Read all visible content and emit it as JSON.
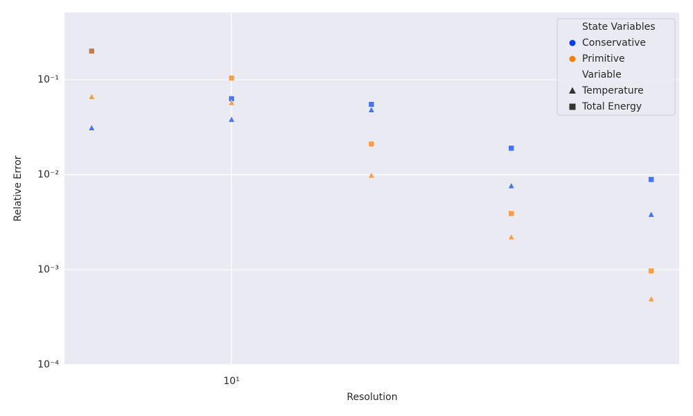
{
  "chart_data": {
    "type": "scatter",
    "x_label": "Resolution",
    "y_label": "Relative Error",
    "x": [
      5,
      10,
      20,
      40,
      80
    ],
    "xlog": true,
    "ylog": true,
    "xlim": [
      4.37,
      91.9
    ],
    "ylim": [
      0.0001,
      0.51
    ],
    "xticks": [
      {
        "value": 10,
        "label": "10¹"
      }
    ],
    "yticks": [
      {
        "value": 0.0001,
        "label": "10⁻⁴"
      },
      {
        "value": 0.001,
        "label": "10⁻³"
      },
      {
        "value": 0.01,
        "label": "10⁻²"
      },
      {
        "value": 0.1,
        "label": "10⁻¹"
      }
    ],
    "grid": true,
    "legend": "upper right",
    "hue": {
      "title": "State Variables",
      "levels": [
        {
          "name": "Conservative",
          "color": "#023eff"
        },
        {
          "name": "Primitive",
          "color": "#ff7c00"
        }
      ]
    },
    "style": {
      "title": "Variable",
      "levels": [
        {
          "name": "Temperature",
          "marker": "triangle"
        },
        {
          "name": "Total Energy",
          "marker": "square"
        }
      ]
    },
    "series": [
      {
        "hue": 0,
        "style": 0,
        "values": [
          0.031,
          0.038,
          0.048,
          0.0076,
          0.0038
        ]
      },
      {
        "hue": 0,
        "style": 1,
        "values": [
          0.2,
          0.063,
          0.055,
          0.019,
          0.0089
        ]
      },
      {
        "hue": 1,
        "style": 0,
        "values": [
          0.066,
          0.057,
          0.0098,
          0.0022,
          0.00049
        ]
      },
      {
        "hue": 1,
        "style": 1,
        "values": [
          0.2,
          0.104,
          0.021,
          0.0039,
          0.00097
        ]
      }
    ]
  }
}
